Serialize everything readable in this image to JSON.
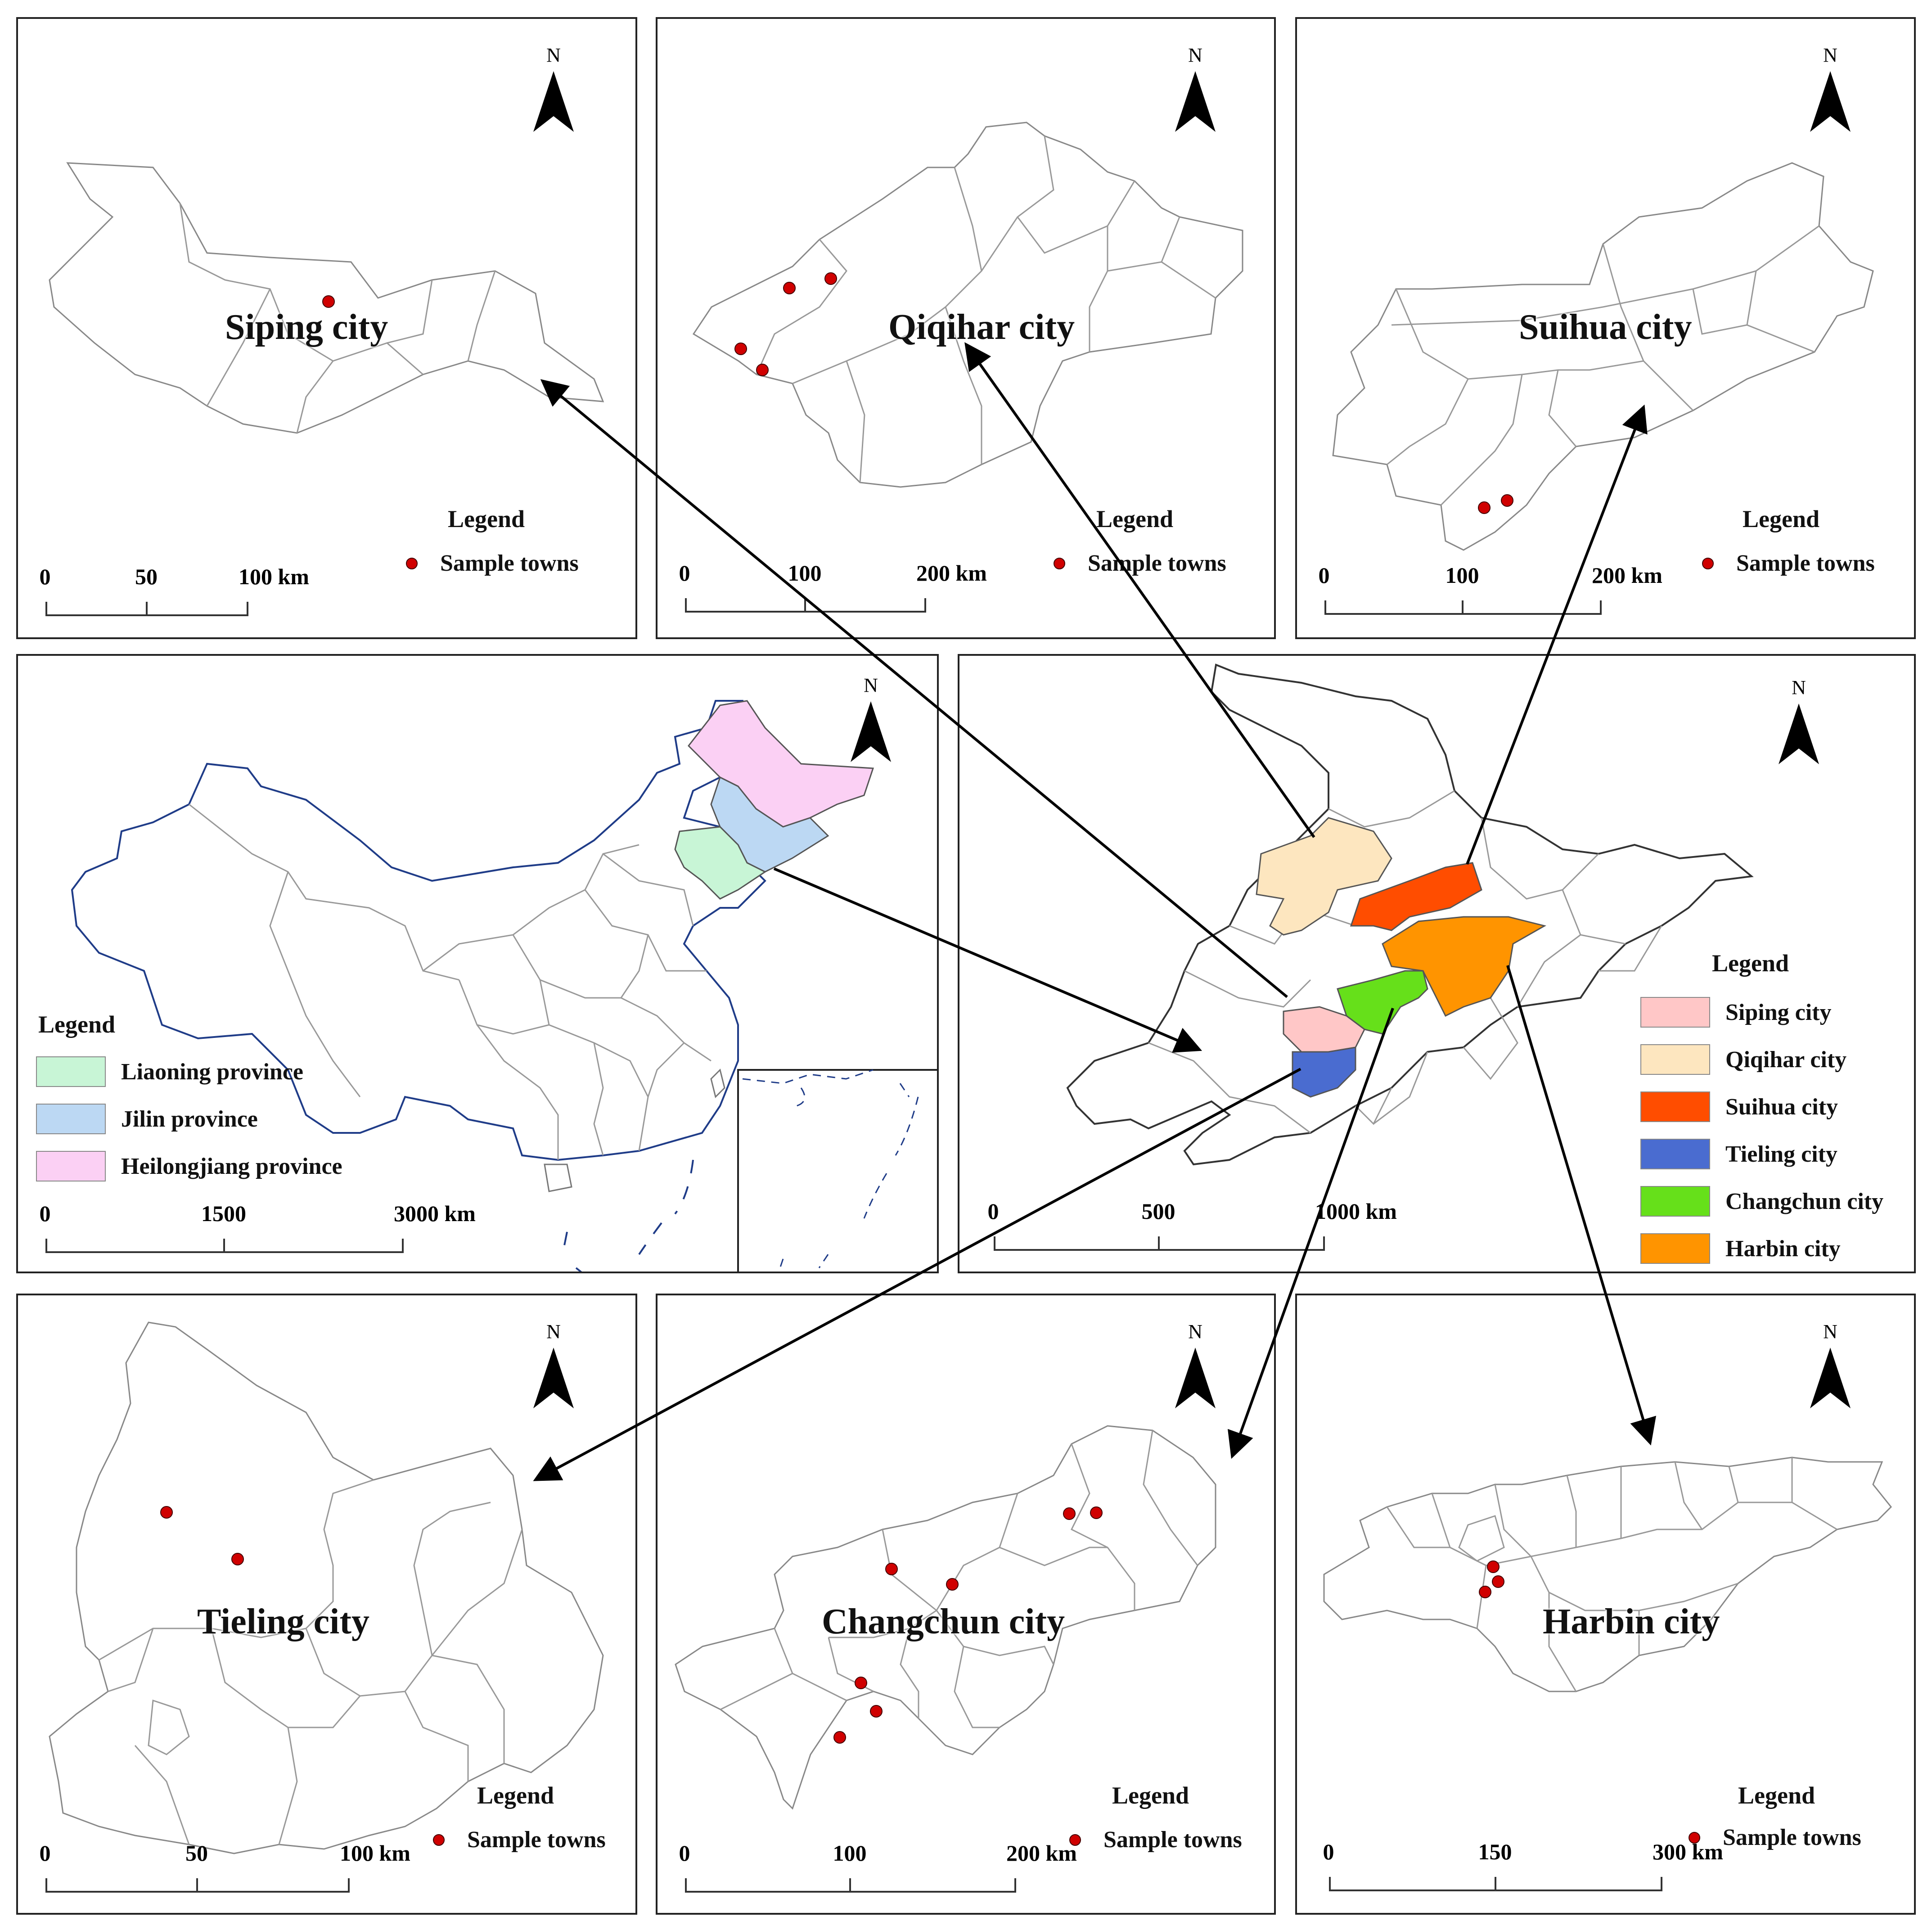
{
  "north_label": "N",
  "legend_title": "Legend",
  "sample_towns_label": "Sample towns",
  "colors": {
    "sample_dot": "#d00000",
    "liaoning": "#c8f5d6",
    "jilin": "#bcd8f3",
    "heilongjiang": "#fbd0f4",
    "siping": "#ffc7c7",
    "qiqihar": "#fde6bf",
    "suihua": "#ff4d00",
    "tieling": "#4a6cd0",
    "changchun": "#66e01a",
    "harbin": "#ff9400"
  },
  "panels": {
    "siping": {
      "title": "Siping city",
      "scale": [
        "0",
        "50",
        "100 km"
      ]
    },
    "qiqihar": {
      "title": "Qiqihar city",
      "scale": [
        "0",
        "100",
        "200 km"
      ]
    },
    "suihua": {
      "title": "Suihua city",
      "scale": [
        "0",
        "100",
        "200 km"
      ]
    },
    "tieling": {
      "title": "Tieling city",
      "scale": [
        "0",
        "50",
        "100 km"
      ]
    },
    "changchun": {
      "title": "Changchun city",
      "scale": [
        "0",
        "100",
        "200 km"
      ]
    },
    "harbin": {
      "title": "Harbin city",
      "scale": [
        "0",
        "150",
        "300 km"
      ]
    },
    "china": {
      "scale": [
        "0",
        "1500",
        "3000 km"
      ],
      "legend": [
        {
          "label": "Liaoning province",
          "color_key": "liaoning"
        },
        {
          "label": "Jilin province",
          "color_key": "jilin"
        },
        {
          "label": "Heilongjiang province",
          "color_key": "heilongjiang"
        }
      ]
    },
    "northeast": {
      "scale": [
        "0",
        "500",
        "1000 km"
      ],
      "legend": [
        {
          "label": "Siping city",
          "color_key": "siping"
        },
        {
          "label": "Qiqihar city",
          "color_key": "qiqihar"
        },
        {
          "label": "Suihua city",
          "color_key": "suihua"
        },
        {
          "label": "Tieling city",
          "color_key": "tieling"
        },
        {
          "label": "Changchun city",
          "color_key": "changchun"
        },
        {
          "label": "Harbin city",
          "color_key": "harbin"
        }
      ]
    }
  }
}
